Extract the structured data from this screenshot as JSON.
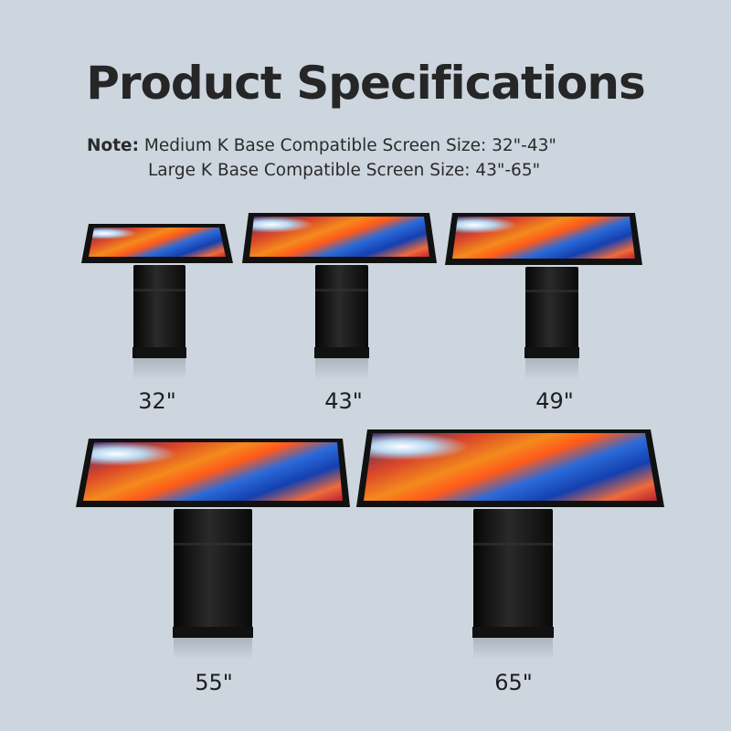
{
  "title": "Product Specifications",
  "note": {
    "prefix": "Note:",
    "line1": "Medium K Base Compatible Screen Size: 32\"-43\"",
    "line2": "Large K Base Compatible Screen Size: 43\"-65\""
  },
  "kiosks": [
    {
      "size": "32\""
    },
    {
      "size": "43\""
    },
    {
      "size": "49\""
    },
    {
      "size": "55\""
    },
    {
      "size": "65\""
    }
  ]
}
